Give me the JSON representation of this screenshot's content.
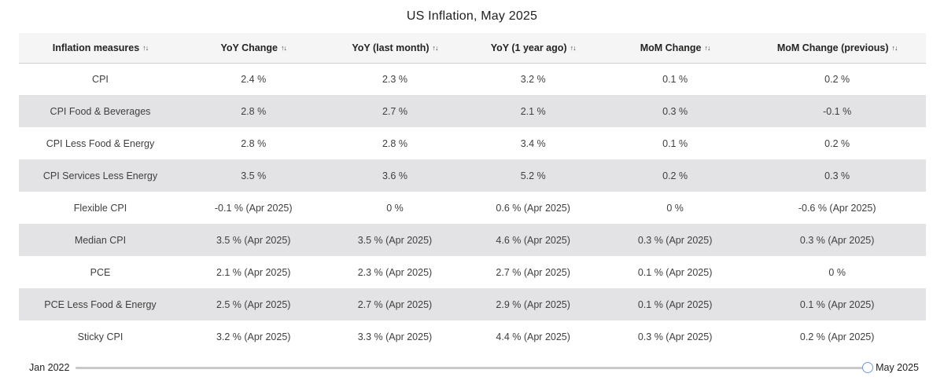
{
  "title": "US Inflation, May 2025",
  "icons": {
    "sort": "↑↓"
  },
  "chart_data": {
    "type": "table",
    "title": "US Inflation, May 2025",
    "columns": [
      "Inflation measures",
      "YoY Change",
      "YoY (last month)",
      "YoY (1 year ago)",
      "MoM Change",
      "MoM Change (previous)"
    ],
    "rows": [
      {
        "measure": "CPI",
        "values": [
          "2.4 %",
          "2.3 %",
          "3.2 %",
          "0.1 %",
          "0.2 %"
        ]
      },
      {
        "measure": "CPI Food & Beverages",
        "values": [
          "2.8 %",
          "2.7 %",
          "2.1 %",
          "0.3 %",
          "-0.1 %"
        ]
      },
      {
        "measure": "CPI Less Food & Energy",
        "values": [
          "2.8 %",
          "2.8 %",
          "3.4 %",
          "0.1 %",
          "0.2 %"
        ]
      },
      {
        "measure": "CPI Services Less Energy",
        "values": [
          "3.5 %",
          "3.6 %",
          "5.2 %",
          "0.2 %",
          "0.3 %"
        ]
      },
      {
        "measure": "Flexible CPI",
        "values": [
          "-0.1 % (Apr 2025)",
          "0 %",
          "0.6 % (Apr 2025)",
          "0 %",
          "-0.6 % (Apr 2025)"
        ]
      },
      {
        "measure": "Median CPI",
        "values": [
          "3.5 % (Apr 2025)",
          "3.5 % (Apr 2025)",
          "4.6 % (Apr 2025)",
          "0.3 % (Apr 2025)",
          "0.3 % (Apr 2025)"
        ]
      },
      {
        "measure": "PCE",
        "values": [
          "2.1 % (Apr 2025)",
          "2.3 % (Apr 2025)",
          "2.7 % (Apr 2025)",
          "0.1 % (Apr 2025)",
          "0 %"
        ]
      },
      {
        "measure": "PCE Less Food & Energy",
        "values": [
          "2.5 % (Apr 2025)",
          "2.7 % (Apr 2025)",
          "2.9 % (Apr 2025)",
          "0.1 % (Apr 2025)",
          "0.1 % (Apr 2025)"
        ]
      },
      {
        "measure": "Sticky CPI",
        "values": [
          "3.2 % (Apr 2025)",
          "3.3 % (Apr 2025)",
          "4.4 % (Apr 2025)",
          "0.3 % (Apr 2025)",
          "0.2 % (Apr 2025)"
        ]
      }
    ],
    "column_widths_percent": [
      17.95,
      15.83,
      15.35,
      15.13,
      16.17,
      19.57
    ]
  },
  "slider": {
    "start_label": "Jan 2022",
    "end_label": "May 2025",
    "selected_value": "May 2025",
    "handle_position_percent": 100
  },
  "colors": {
    "header_bg": "#f5f5f5",
    "alt_row_bg": "#e3e3e5",
    "header_border": "#cfcfcf",
    "slider_track": "#c9c9c9",
    "slider_handle_border": "#6e9ed6",
    "text_dark": "#252423",
    "text_cell": "#3f3f3f"
  }
}
